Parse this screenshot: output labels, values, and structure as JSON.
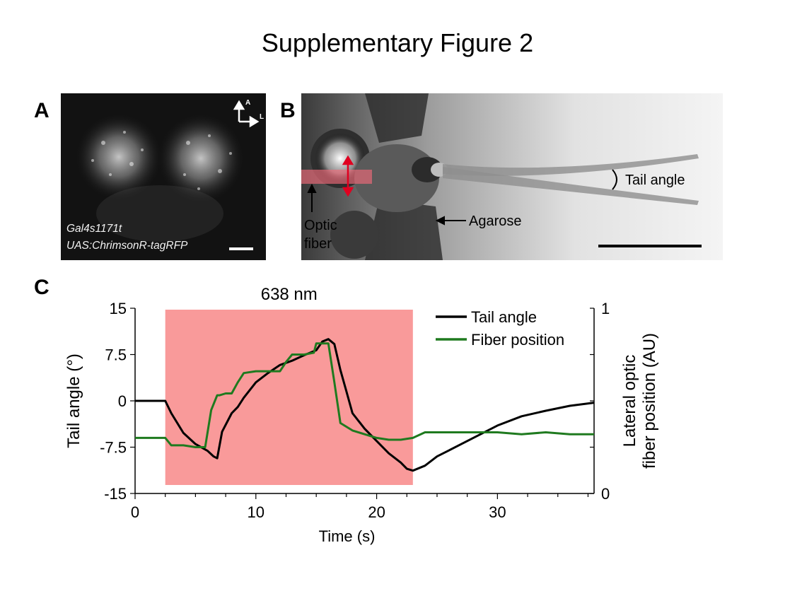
{
  "figure_title": "Supplementary Figure 2",
  "panels": {
    "a": {
      "letter": "A",
      "orientation": {
        "anterior": "A",
        "lateral": "L"
      },
      "caption_line1": "Gal4s1171t",
      "caption_line2": "UAS:ChrimsonR-tagRFP"
    },
    "b": {
      "letter": "B",
      "labels": {
        "optic_fiber_line1": "Optic",
        "optic_fiber_line2": "fiber",
        "agarose": "Agarose",
        "tail_angle": "Tail angle"
      }
    },
    "c": {
      "letter": "C"
    }
  },
  "chart_data": {
    "type": "line",
    "title": "",
    "annotation": "638 nm",
    "xlabel": "Time (s)",
    "ylabel_left": "Tail angle (°)",
    "ylabel_right_line1": "Lateral optic",
    "ylabel_right_line2": "fiber position (AU)",
    "xlim": [
      0,
      38
    ],
    "ylim_left": [
      -15,
      15
    ],
    "ylim_right": [
      0,
      1
    ],
    "x_ticks": [
      0,
      10,
      20,
      30
    ],
    "x_tick_labels": [
      "0",
      "10",
      "20",
      "30"
    ],
    "y_left_ticks": [
      15,
      7.5,
      0,
      -7.5,
      -15
    ],
    "y_left_tick_labels": [
      "15",
      "7.5",
      "0",
      "-7.5",
      "-15"
    ],
    "y_right_ticks": [
      1,
      0
    ],
    "y_right_tick_labels": [
      "1",
      "0"
    ],
    "stimulus_window": {
      "x_start": 2.5,
      "x_end": 23,
      "color": "#f99a9a"
    },
    "legend_placement": "top-right",
    "series": [
      {
        "name": "Tail angle",
        "color": "#000000",
        "axis": "left",
        "points": [
          [
            0,
            0
          ],
          [
            2.5,
            0
          ],
          [
            3,
            -2
          ],
          [
            4,
            -5.2
          ],
          [
            5,
            -7
          ],
          [
            6,
            -8.1
          ],
          [
            6.5,
            -9
          ],
          [
            6.8,
            -9.3
          ],
          [
            7.2,
            -5
          ],
          [
            8,
            -2
          ],
          [
            8.5,
            -1
          ],
          [
            9,
            0.5
          ],
          [
            10,
            3
          ],
          [
            11,
            4.5
          ],
          [
            12,
            5.8
          ],
          [
            13,
            6.5
          ],
          [
            14,
            7.4
          ],
          [
            15,
            8.2
          ],
          [
            15.5,
            9.6
          ],
          [
            16,
            10
          ],
          [
            16.5,
            9.2
          ],
          [
            17,
            5
          ],
          [
            17.5,
            1.5
          ],
          [
            18,
            -2
          ],
          [
            19,
            -4.5
          ],
          [
            20,
            -6.5
          ],
          [
            21,
            -8.5
          ],
          [
            22,
            -10
          ],
          [
            22.5,
            -11
          ],
          [
            23,
            -11.3
          ],
          [
            24,
            -10.5
          ],
          [
            25,
            -9
          ],
          [
            26,
            -8
          ],
          [
            28,
            -6
          ],
          [
            30,
            -4
          ],
          [
            32,
            -2.5
          ],
          [
            34,
            -1.6
          ],
          [
            36,
            -0.8
          ],
          [
            38,
            -0.3
          ]
        ]
      },
      {
        "name": "Fiber position",
        "color": "#1f7a1f",
        "axis": "right",
        "points": [
          [
            0,
            0.3
          ],
          [
            2.5,
            0.3
          ],
          [
            3,
            0.26
          ],
          [
            4,
            0.26
          ],
          [
            5,
            0.25
          ],
          [
            5.8,
            0.25
          ],
          [
            6.3,
            0.45
          ],
          [
            6.8,
            0.53
          ],
          [
            7,
            0.53
          ],
          [
            7.5,
            0.54
          ],
          [
            8,
            0.54
          ],
          [
            8.5,
            0.6
          ],
          [
            9,
            0.65
          ],
          [
            10,
            0.66
          ],
          [
            11,
            0.66
          ],
          [
            12,
            0.66
          ],
          [
            12.5,
            0.71
          ],
          [
            13,
            0.75
          ],
          [
            14,
            0.75
          ],
          [
            14.8,
            0.76
          ],
          [
            15,
            0.81
          ],
          [
            16,
            0.81
          ],
          [
            16.5,
            0.6
          ],
          [
            17,
            0.38
          ],
          [
            18,
            0.34
          ],
          [
            19,
            0.32
          ],
          [
            20,
            0.3
          ],
          [
            21,
            0.29
          ],
          [
            22,
            0.29
          ],
          [
            23,
            0.3
          ],
          [
            24,
            0.33
          ],
          [
            26,
            0.33
          ],
          [
            28,
            0.33
          ],
          [
            30,
            0.33
          ],
          [
            32,
            0.32
          ],
          [
            34,
            0.33
          ],
          [
            36,
            0.32
          ],
          [
            38,
            0.32
          ]
        ]
      }
    ]
  }
}
